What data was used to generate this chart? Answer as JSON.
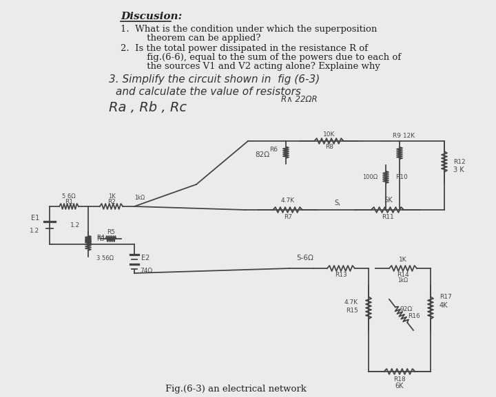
{
  "background_color": "#ebebeb",
  "text_color": "#222222",
  "circuit_color": "#444444",
  "handwriting_color": "#333333",
  "title": "Discusion:",
  "q1_line1": "1.  What is the condition under which the superposition",
  "q1_line2": "     theorem can be applied?",
  "q2_line1": "2.  Is the total power dissipated in the resistance R of",
  "q2_line2": "     fig.(6-6), equal to the sum of the powers due to each of",
  "q2_line3": "     the sources V1 and V2 acting alone? Explaine why",
  "q3_line1": "3. Simplify the circuit shown in  fig (6-3)",
  "q3_line2": "   and calculate the value of resistors",
  "q3_line3": "   R∧ 22ΩR",
  "q3_line4": "Ra , Rb , Rc",
  "caption": "Fig.(6-3) an electrical network"
}
